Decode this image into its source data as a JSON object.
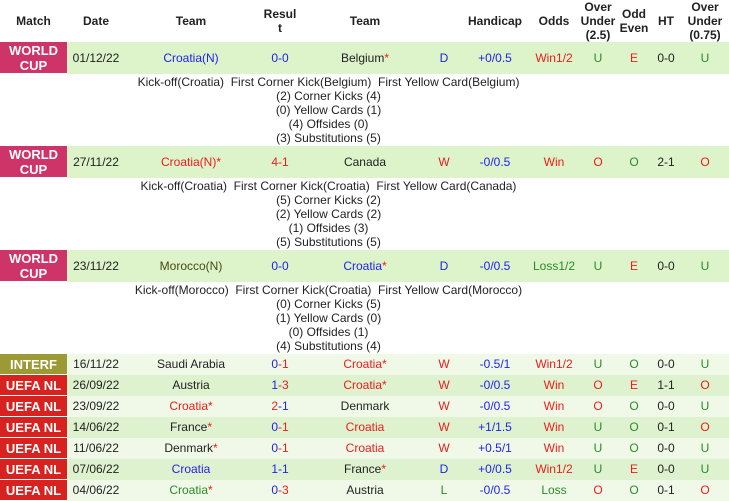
{
  "colors": {
    "world_cup": "#cf3468",
    "interf": "#9c9a34",
    "uefa_nl": "#d7221f",
    "blue": "#2222ee",
    "red": "#ee1c1c",
    "green": "#2a8a2a",
    "dark": "#222222",
    "olive": "#4a4a10"
  },
  "headers": [
    "Match",
    "Date",
    "Team",
    "Result",
    "Team",
    "",
    "Handicap",
    "Odds",
    "Over Under (2.5)",
    "Odd Even",
    "HT",
    "Over Under (0.75)"
  ],
  "matches": [
    {
      "match": "WORLD CUP",
      "mcolor": "world_cup",
      "date": "01/12/22",
      "home": "Croatia(N)",
      "home_color": "blue",
      "score_home": "0",
      "score_home_color": "blue",
      "score_away": "0",
      "score_away_color": "blue",
      "away": "Belgium",
      "away_star": true,
      "away_color": "dark",
      "home_star": false,
      "res": "D",
      "res_color": "blue",
      "handicap": "+0/0.5",
      "odds": "Win1/2",
      "odds_color": "red",
      "ou": "U",
      "ou_color": "green",
      "oe": "E",
      "oe_color": "red",
      "ht": "0-0",
      "ou75": "U",
      "ou75_color": "green",
      "details": [
        "Kick-off(Croatia)  First Corner Kick(Belgium)  First Yellow Card(Belgium)",
        "(2) Corner Kicks (4)",
        "(0) Yellow Cards (1)",
        "(4) Offsides (0)",
        "(3) Substitutions (5)"
      ]
    },
    {
      "match": "WORLD CUP",
      "mcolor": "world_cup",
      "date": "27/11/22",
      "home": "Croatia(N)",
      "home_color": "red",
      "home_star": true,
      "score_home": "4",
      "score_home_color": "red",
      "score_away": "1",
      "score_away_color": "red",
      "away": "Canada",
      "away_color": "dark",
      "away_star": false,
      "res": "W",
      "res_color": "red",
      "handicap": "-0/0.5",
      "odds": "Win",
      "odds_color": "red",
      "ou": "O",
      "ou_color": "red",
      "oe": "O",
      "oe_color": "green",
      "ht": "2-1",
      "ou75": "O",
      "ou75_color": "red",
      "details": [
        "Kick-off(Croatia)  First Corner Kick(Croatia)  First Yellow Card(Canada)",
        "(5) Corner Kicks (2)",
        "(2) Yellow Cards (2)",
        "(1) Offsides (3)",
        "(5) Substitutions (5)"
      ]
    },
    {
      "match": "WORLD CUP",
      "mcolor": "world_cup",
      "date": "23/11/22",
      "home": "Morocco(N)",
      "home_color": "olive",
      "home_star": false,
      "score_home": "0",
      "score_home_color": "blue",
      "score_away": "0",
      "score_away_color": "blue",
      "away": "Croatia",
      "away_color": "blue",
      "away_star": true,
      "res": "D",
      "res_color": "blue",
      "handicap": "-0/0.5",
      "odds": "Loss1/2",
      "odds_color": "green",
      "ou": "U",
      "ou_color": "green",
      "oe": "E",
      "oe_color": "red",
      "ht": "0-0",
      "ou75": "U",
      "ou75_color": "green",
      "details": [
        "Kick-off(Morocco)  First Corner Kick(Croatia)  First Yellow Card(Morocco)",
        "(0) Corner Kicks (5)",
        "(1) Yellow Cards (0)",
        "(0) Offsides (1)",
        "(4) Substitutions (4)"
      ]
    },
    {
      "match": "INTERF",
      "mcolor": "interf",
      "date": "16/11/22",
      "home": "Saudi Arabia",
      "home_color": "dark",
      "home_star": false,
      "score_home": "0",
      "score_home_color": "blue",
      "score_away": "1",
      "score_away_color": "red",
      "away": "Croatia",
      "away_color": "red",
      "away_star": true,
      "res": "W",
      "res_color": "red",
      "handicap": "-0.5/1",
      "odds": "Win1/2",
      "odds_color": "red",
      "ou": "U",
      "ou_color": "green",
      "oe": "O",
      "oe_color": "green",
      "ht": "0-0",
      "ou75": "U",
      "ou75_color": "green"
    },
    {
      "match": "UEFA NL",
      "mcolor": "uefa_nl",
      "date": "26/09/22",
      "home": "Austria",
      "home_color": "dark",
      "home_star": false,
      "score_home": "1",
      "score_home_color": "blue",
      "score_away": "3",
      "score_away_color": "red",
      "away": "Croatia",
      "away_color": "red",
      "away_star": true,
      "res": "W",
      "res_color": "red",
      "handicap": "-0/0.5",
      "odds": "Win",
      "odds_color": "red",
      "ou": "O",
      "ou_color": "red",
      "oe": "E",
      "oe_color": "red",
      "ht": "1-1",
      "ou75": "O",
      "ou75_color": "red"
    },
    {
      "match": "UEFA NL",
      "mcolor": "uefa_nl",
      "date": "23/09/22",
      "home": "Croatia",
      "home_color": "red",
      "home_star": true,
      "score_home": "2",
      "score_home_color": "red",
      "score_away": "1",
      "score_away_color": "blue",
      "away": "Denmark",
      "away_color": "dark",
      "away_star": false,
      "res": "W",
      "res_color": "red",
      "handicap": "-0/0.5",
      "odds": "Win",
      "odds_color": "red",
      "ou": "O",
      "ou_color": "red",
      "oe": "O",
      "oe_color": "green",
      "ht": "0-0",
      "ou75": "U",
      "ou75_color": "green"
    },
    {
      "match": "UEFA NL",
      "mcolor": "uefa_nl",
      "date": "14/06/22",
      "home": "France",
      "home_color": "dark",
      "home_star": true,
      "score_home": "0",
      "score_home_color": "blue",
      "score_away": "1",
      "score_away_color": "red",
      "away": "Croatia",
      "away_color": "red",
      "away_star": false,
      "res": "W",
      "res_color": "red",
      "handicap": "+1/1.5",
      "odds": "Win",
      "odds_color": "red",
      "ou": "U",
      "ou_color": "green",
      "oe": "O",
      "oe_color": "green",
      "ht": "0-1",
      "ou75": "O",
      "ou75_color": "red"
    },
    {
      "match": "UEFA NL",
      "mcolor": "uefa_nl",
      "date": "11/06/22",
      "home": "Denmark",
      "home_color": "dark",
      "home_star": true,
      "score_home": "0",
      "score_home_color": "blue",
      "score_away": "1",
      "score_away_color": "red",
      "away": "Croatia",
      "away_color": "red",
      "away_star": false,
      "res": "W",
      "res_color": "red",
      "handicap": "+0.5/1",
      "odds": "Win",
      "odds_color": "red",
      "ou": "U",
      "ou_color": "green",
      "oe": "O",
      "oe_color": "green",
      "ht": "0-0",
      "ou75": "U",
      "ou75_color": "green"
    },
    {
      "match": "UEFA NL",
      "mcolor": "uefa_nl",
      "date": "07/06/22",
      "home": "Croatia",
      "home_color": "blue",
      "home_star": false,
      "score_home": "1",
      "score_home_color": "blue",
      "score_away": "1",
      "score_away_color": "blue",
      "away": "France",
      "away_color": "dark",
      "away_star": true,
      "res": "D",
      "res_color": "blue",
      "handicap": "+0/0.5",
      "odds": "Win1/2",
      "odds_color": "red",
      "ou": "U",
      "ou_color": "green",
      "oe": "E",
      "oe_color": "red",
      "ht": "0-0",
      "ou75": "U",
      "ou75_color": "green"
    },
    {
      "match": "UEFA NL",
      "mcolor": "uefa_nl",
      "date": "04/06/22",
      "home": "Croatia",
      "home_color": "green",
      "home_star": true,
      "score_home": "0",
      "score_home_color": "blue",
      "score_away": "3",
      "score_away_color": "red",
      "away": "Austria",
      "away_color": "dark",
      "away_star": false,
      "res": "L",
      "res_color": "green",
      "handicap": "-0/0.5",
      "odds": "Loss",
      "odds_color": "green",
      "ou": "O",
      "ou_color": "red",
      "oe": "O",
      "oe_color": "green",
      "ht": "0-1",
      "ou75": "O",
      "ou75_color": "red"
    }
  ],
  "star": "*",
  "dash": "-"
}
